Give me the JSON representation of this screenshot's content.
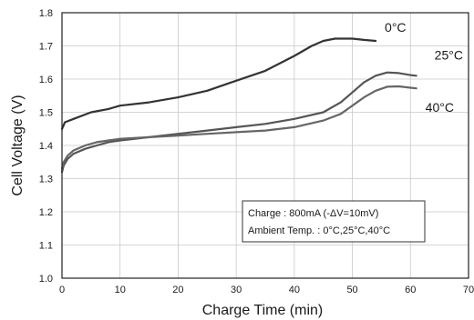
{
  "chart_data": {
    "type": "line",
    "xlabel": "Charge Time (min)",
    "ylabel": "Cell Voltage (V)",
    "xlim": [
      0,
      70
    ],
    "ylim": [
      1.0,
      1.8
    ],
    "xticks": [
      "0",
      "10",
      "20",
      "30",
      "40",
      "50",
      "60",
      "70"
    ],
    "yticks": [
      "1.0",
      "1.1",
      "1.2",
      "1.3",
      "1.4",
      "1.5",
      "1.6",
      "1.7",
      "1.8"
    ],
    "grid": true,
    "series": [
      {
        "name": "0°C",
        "color": "#333333",
        "x": [
          0,
          0.5,
          2,
          5,
          8,
          10,
          15,
          20,
          25,
          30,
          35,
          40,
          43,
          45,
          47,
          50,
          52,
          54
        ],
        "y": [
          1.45,
          1.47,
          1.48,
          1.5,
          1.51,
          1.52,
          1.53,
          1.545,
          1.565,
          1.595,
          1.625,
          1.67,
          1.7,
          1.715,
          1.722,
          1.722,
          1.718,
          1.715
        ]
      },
      {
        "name": "25°C",
        "color": "#555555",
        "x": [
          0,
          0.3,
          1,
          2,
          4,
          6,
          8,
          10,
          15,
          20,
          25,
          30,
          35,
          40,
          45,
          48,
          50,
          52,
          54,
          56,
          58,
          60,
          61
        ],
        "y": [
          1.32,
          1.34,
          1.36,
          1.375,
          1.39,
          1.4,
          1.41,
          1.415,
          1.425,
          1.435,
          1.445,
          1.455,
          1.465,
          1.48,
          1.5,
          1.53,
          1.56,
          1.59,
          1.61,
          1.62,
          1.618,
          1.612,
          1.61
        ]
      },
      {
        "name": "40°C",
        "color": "#666666",
        "x": [
          0,
          0.3,
          1,
          2,
          4,
          6,
          8,
          10,
          15,
          20,
          25,
          30,
          35,
          40,
          45,
          48,
          50,
          52,
          54,
          56,
          58,
          60,
          61
        ],
        "y": [
          1.33,
          1.35,
          1.37,
          1.385,
          1.4,
          1.41,
          1.415,
          1.42,
          1.425,
          1.43,
          1.435,
          1.44,
          1.445,
          1.455,
          1.475,
          1.495,
          1.52,
          1.545,
          1.565,
          1.577,
          1.578,
          1.574,
          1.572
        ]
      }
    ],
    "annotations": [
      "Charge : 800mA (-ΔV=10mV)",
      "Ambient Temp. : 0°C,25°C,40°C"
    ]
  }
}
